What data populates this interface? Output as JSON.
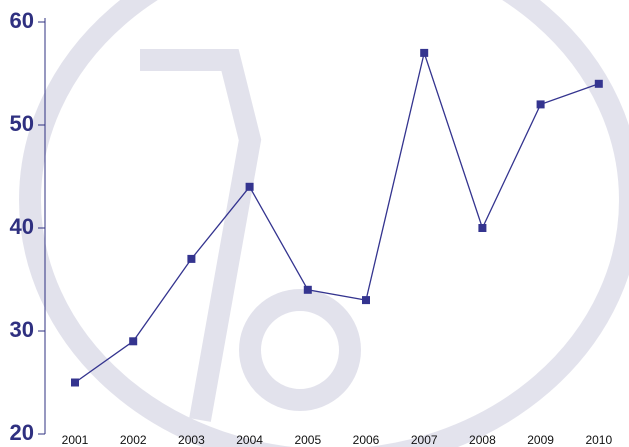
{
  "chart_data": {
    "type": "line",
    "categories": [
      "2001",
      "2002",
      "2003",
      "2004",
      "2005",
      "2006",
      "2007",
      "2008",
      "2009",
      "2010"
    ],
    "values": [
      25,
      29,
      37,
      44,
      34,
      33,
      57,
      40,
      52,
      54
    ],
    "color": "#34348f",
    "ylim": [
      20,
      60
    ],
    "yticks": [
      20,
      30,
      40,
      50,
      60
    ]
  }
}
